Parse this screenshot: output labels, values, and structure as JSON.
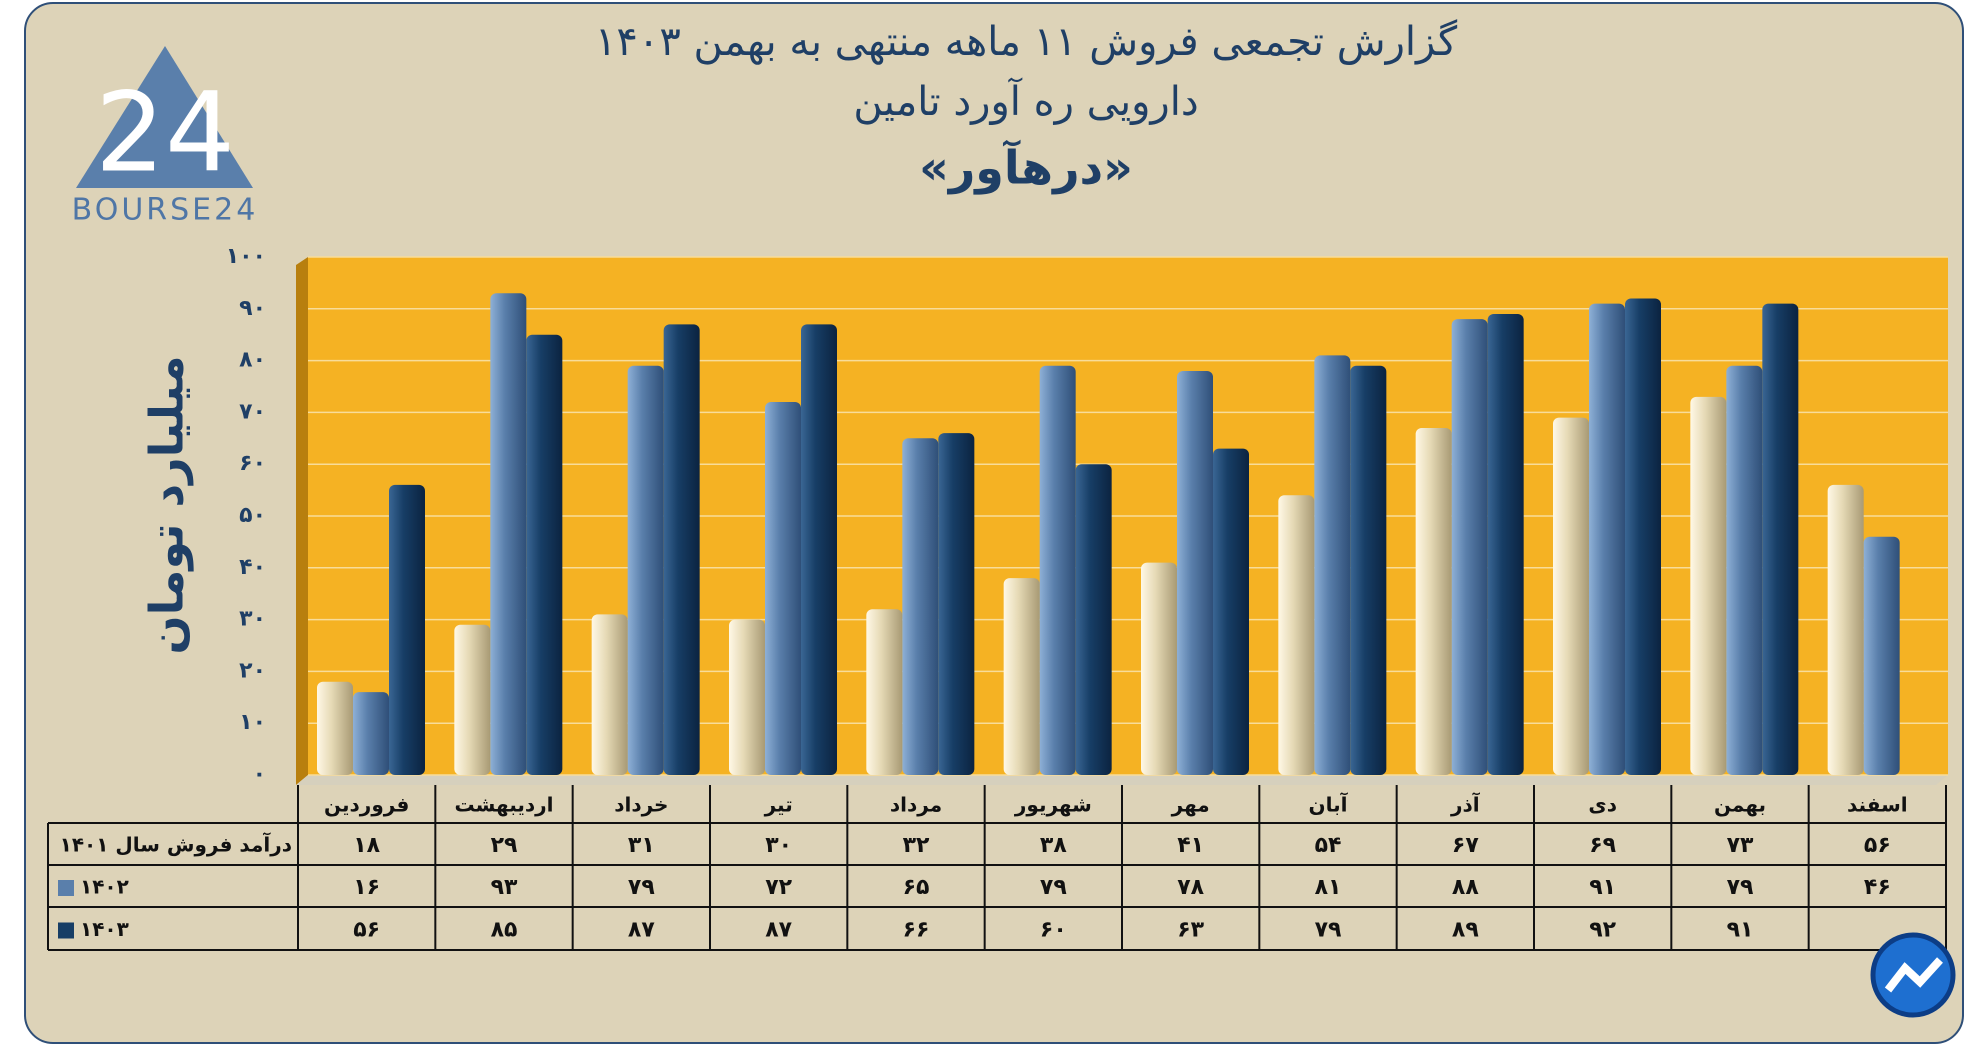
{
  "logo_text": "BOURSE24",
  "chart_data": {
    "type": "bar",
    "title": "گزارش تجمعی فروش ۱۱ ماهه منتهی به بهمن ۱۴۰۳",
    "subtitle": "دارویی ره آورد تامین",
    "subtitle2": "«درهآور»",
    "y_label": "میلیارد تومان",
    "categories": [
      "فروردین",
      "اردیبهشت",
      "خرداد",
      "تیر",
      "مرداد",
      "شهریور",
      "مهر",
      "آبان",
      "آذر",
      "دی",
      "بهمن",
      "اسفند"
    ],
    "series": [
      {
        "name": "درآمد فروش سال ۱۴۰۱",
        "color": "#e6dab6",
        "values": [
          18,
          29,
          31,
          30,
          32,
          38,
          41,
          54,
          67,
          69,
          73,
          56
        ],
        "value_labels": [
          "۱۸",
          "۲۹",
          "۳۱",
          "۳۰",
          "۳۲",
          "۳۸",
          "۴۱",
          "۵۴",
          "۶۷",
          "۶۹",
          "۷۳",
          "۵۶"
        ]
      },
      {
        "name": "۱۴۰۲",
        "color": "#5a7fab",
        "values": [
          16,
          93,
          79,
          72,
          65,
          79,
          78,
          81,
          88,
          91,
          79,
          46
        ],
        "value_labels": [
          "۱۶",
          "۹۳",
          "۷۹",
          "۷۲",
          "۶۵",
          "۷۹",
          "۷۸",
          "۸۱",
          "۸۸",
          "۹۱",
          "۷۹",
          "۴۶"
        ]
      },
      {
        "name": "۱۴۰۳",
        "color": "#173e66",
        "values": [
          56,
          85,
          87,
          87,
          66,
          60,
          63,
          79,
          89,
          92,
          91,
          null
        ],
        "value_labels": [
          "۵۶",
          "۸۵",
          "۸۷",
          "۸۷",
          "۶۶",
          "۶۰",
          "۶۳",
          "۷۹",
          "۸۹",
          "۹۲",
          "۹۱",
          null
        ]
      }
    ],
    "ylim": [
      0,
      100
    ],
    "yticks": [
      {
        "value": 0,
        "label": "۰"
      },
      {
        "value": 10,
        "label": "۱۰"
      },
      {
        "value": 20,
        "label": "۲۰"
      },
      {
        "value": 30,
        "label": "۳۰"
      },
      {
        "value": 40,
        "label": "۴۰"
      },
      {
        "value": 50,
        "label": "۵۰"
      },
      {
        "value": 60,
        "label": "۶۰"
      },
      {
        "value": 70,
        "label": "۷۰"
      },
      {
        "value": 80,
        "label": "۸۰"
      },
      {
        "value": 90,
        "label": "۹۰"
      },
      {
        "value": 100,
        "label": "۱۰۰"
      }
    ],
    "grid": true
  }
}
